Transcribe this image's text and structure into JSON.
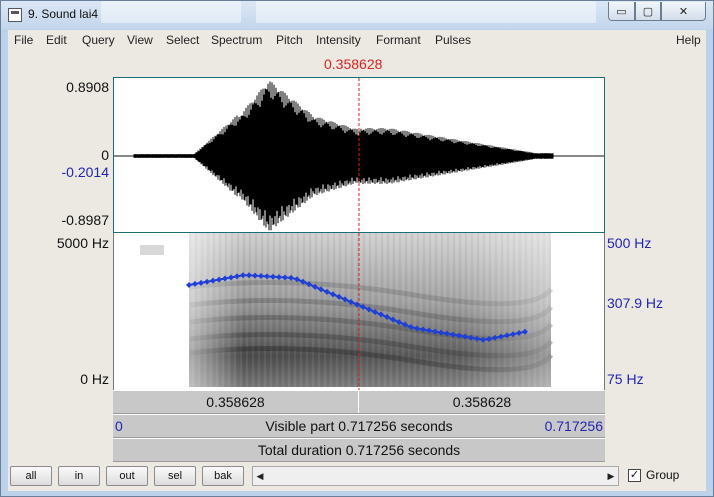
{
  "window": {
    "title": "9. Sound lai4"
  },
  "menu": [
    "File",
    "Edit",
    "Query",
    "View",
    "Select",
    "Spectrum",
    "Pitch",
    "Intensity",
    "Formant",
    "Pulses",
    "Help"
  ],
  "cursor_time": "0.358628",
  "waveform_axis": {
    "top": "0.8908",
    "zero": "0",
    "cursor_value": "-0.2014",
    "bottom": "-0.8987"
  },
  "spectrogram_axis": {
    "top": "5000 Hz",
    "bottom": "0 Hz"
  },
  "pitch_axis": {
    "top": "500 Hz",
    "cursor_value": "307.9 Hz",
    "bottom": "75 Hz"
  },
  "time_bar": {
    "left": "0.358628",
    "right": "0.358628"
  },
  "visible_bar": {
    "start": "0",
    "label": "Visible part 0.717256 seconds",
    "end": "0.717256"
  },
  "total_bar": {
    "label": "Total duration 0.717256 seconds"
  },
  "buttons": [
    "all",
    "in",
    "out",
    "sel",
    "bak"
  ],
  "group": {
    "label": "Group",
    "checked": true,
    "mark": "✓"
  },
  "colors": {
    "cursor": "#d22222",
    "pitch": "#1f3fd6",
    "axis_blue": "#2323b8",
    "panel_border": "#1a6e77"
  },
  "icons": {
    "scroll_left": "◀",
    "scroll_right": "▶",
    "minimize": "▭",
    "maximize": "▢",
    "close": "✕"
  }
}
